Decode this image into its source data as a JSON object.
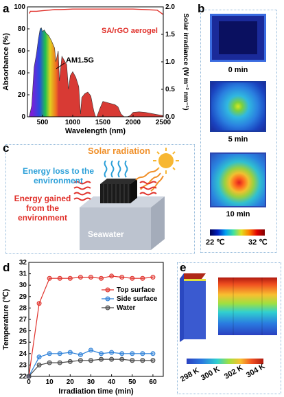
{
  "panels": {
    "a": "a",
    "b": "b",
    "c": "c",
    "d": "d",
    "e": "e"
  },
  "panel_a": {
    "ylabel_left": "Absorbance (%)",
    "ylabel_right": "Solar irradiance (W m⁻² nm⁻¹)",
    "xlabel": "Wavelength (nm)",
    "curve_label": "SA/rGO aerogel",
    "spectrum_label": "AM1.5G",
    "x_ticks": [
      "500",
      "1000",
      "1500",
      "2000",
      "2500"
    ],
    "y_left_ticks": [
      "0",
      "20",
      "40",
      "60",
      "80",
      "100"
    ],
    "y_right_ticks": [
      "0.0",
      "0.5",
      "1.0",
      "1.5",
      "2.0"
    ],
    "colors": {
      "absorbance": "#e0302a",
      "spectrum": "#d83a34"
    }
  },
  "panel_b": {
    "times": [
      "0 min",
      "5 min",
      "10 min"
    ],
    "scale_min": "22 ℃",
    "scale_max": "32 ℃"
  },
  "panel_c": {
    "solar": "Solar radiation",
    "loss": "Energy loss to the environment",
    "gain": "Energy gained from the environment",
    "seawater": "Seawater",
    "colors": {
      "solar": "#f0902a",
      "loss": "#2a9fd8",
      "gain": "#e0302a"
    }
  },
  "panel_d": {
    "xlabel": "Irradiation time (min)",
    "ylabel": "Temperature (℃)",
    "x_ticks": [
      "0",
      "10",
      "20",
      "30",
      "40",
      "50",
      "60"
    ],
    "y_ticks": [
      "22",
      "23",
      "24",
      "25",
      "26",
      "27",
      "28",
      "29",
      "30",
      "31",
      "32"
    ]
  },
  "panel_e": {
    "scale_ticks": [
      "298 K",
      "300 K",
      "302 K",
      "304 K"
    ]
  },
  "chart_data": [
    {
      "type": "area",
      "xlabel": "Wavelength (nm)",
      "ylabel": "Absorbance (%)",
      "ylabel_right": "Solar irradiance (W m⁻² nm⁻¹)",
      "xlim": [
        250,
        2500
      ],
      "ylim": [
        0,
        100
      ],
      "ylim_right": [
        0,
        2.0
      ],
      "series": [
        {
          "name": "SA/rGO aerogel",
          "type": "line",
          "x": [
            280,
            300,
            400,
            500,
            600,
            700,
            800,
            1000,
            1200,
            1500,
            1800,
            2000,
            2200,
            2400,
            2500
          ],
          "y": [
            94,
            96,
            96,
            96.5,
            97,
            97.5,
            97.5,
            98,
            98,
            98,
            98,
            98,
            97.5,
            97,
            93
          ]
        },
        {
          "name": "AM1.5G",
          "type": "area",
          "x": [
            280,
            320,
            360,
            400,
            430,
            460,
            480,
            500,
            530,
            560,
            600,
            650,
            700,
            720,
            760,
            780,
            820,
            900,
            930,
            960,
            1000,
            1050,
            1100,
            1130,
            1150,
            1200,
            1250,
            1300,
            1350,
            1380,
            1400,
            1450,
            1500,
            1600,
            1700,
            1750,
            1800,
            1850,
            1900,
            1950,
            2000,
            2100,
            2200,
            2300,
            2400,
            2500
          ],
          "y": [
            0.0,
            0.2,
            0.9,
            1.15,
            1.4,
            1.6,
            1.62,
            1.55,
            1.58,
            1.52,
            1.48,
            1.38,
            1.25,
            1.0,
            1.2,
            0.65,
            1.1,
            0.95,
            0.5,
            0.75,
            0.82,
            0.72,
            0.55,
            0.05,
            0.35,
            0.42,
            0.45,
            0.38,
            0.1,
            0.0,
            0.0,
            0.15,
            0.28,
            0.25,
            0.22,
            0.18,
            0.05,
            0.0,
            0.0,
            0.02,
            0.08,
            0.09,
            0.08,
            0.06,
            0.04,
            0.02
          ]
        }
      ]
    },
    {
      "type": "line",
      "xlabel": "Irradiation time (min)",
      "ylabel": "Temperature (℃)",
      "xlim": [
        0,
        65
      ],
      "ylim": [
        22,
        32
      ],
      "x": [
        0,
        5,
        10,
        15,
        20,
        25,
        30,
        35,
        40,
        45,
        50,
        55,
        60
      ],
      "series": [
        {
          "name": "Top surface",
          "color": "#e0302a",
          "values": [
            22.0,
            28.4,
            30.6,
            30.6,
            30.6,
            30.7,
            30.7,
            30.6,
            30.8,
            30.7,
            30.6,
            30.6,
            30.7
          ]
        },
        {
          "name": "Side surface",
          "color": "#2a7fd8",
          "values": [
            22.0,
            23.7,
            24.0,
            24.0,
            24.1,
            23.9,
            24.3,
            24.0,
            24.1,
            24.0,
            24.0,
            24.0,
            24.0
          ]
        },
        {
          "name": "Water",
          "color": "#444444",
          "values": [
            22.0,
            23.0,
            23.2,
            23.2,
            23.3,
            23.4,
            23.4,
            23.5,
            23.5,
            23.5,
            23.4,
            23.4,
            23.4
          ]
        }
      ]
    }
  ]
}
